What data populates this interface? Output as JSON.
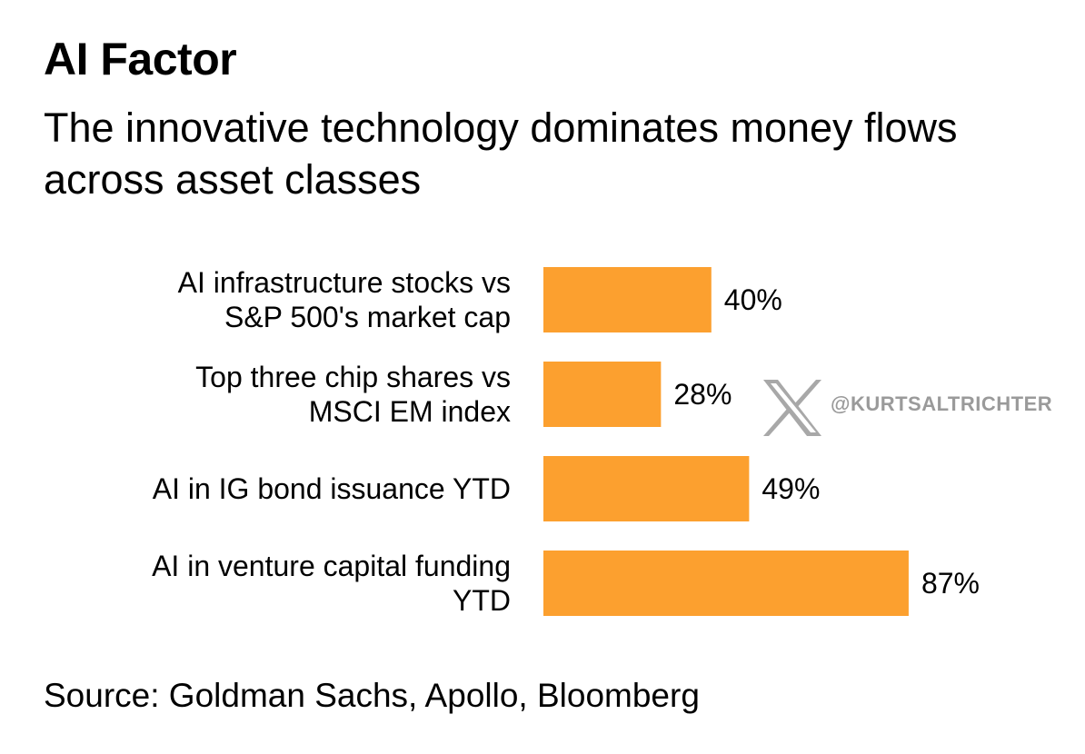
{
  "header": {
    "title": "AI Factor",
    "subtitle": "The innovative technology dominates money flows across asset classes"
  },
  "footer": {
    "source": "Source: Goldman Sachs, Apollo, Bloomberg"
  },
  "watermark": {
    "icon": "x-logo-icon",
    "handle": "@KURTSALTRICHTER"
  },
  "colors": {
    "bar": "#fca02f",
    "text": "#000000",
    "watermark": "#9a9a9a"
  },
  "chart_data": {
    "type": "bar",
    "orientation": "horizontal",
    "categories": [
      [
        "AI infrastructure stocks vs",
        "S&P 500's market cap"
      ],
      [
        "Top three chip shares vs",
        "MSCI EM index"
      ],
      [
        "AI in IG bond issuance YTD"
      ],
      [
        "AI in venture capital funding",
        "YTD"
      ]
    ],
    "values": [
      40,
      28,
      49,
      87
    ],
    "value_labels": [
      "40%",
      "28%",
      "49%",
      "87%"
    ],
    "xlim": [
      0,
      100
    ],
    "grid": false,
    "legend": "none"
  }
}
